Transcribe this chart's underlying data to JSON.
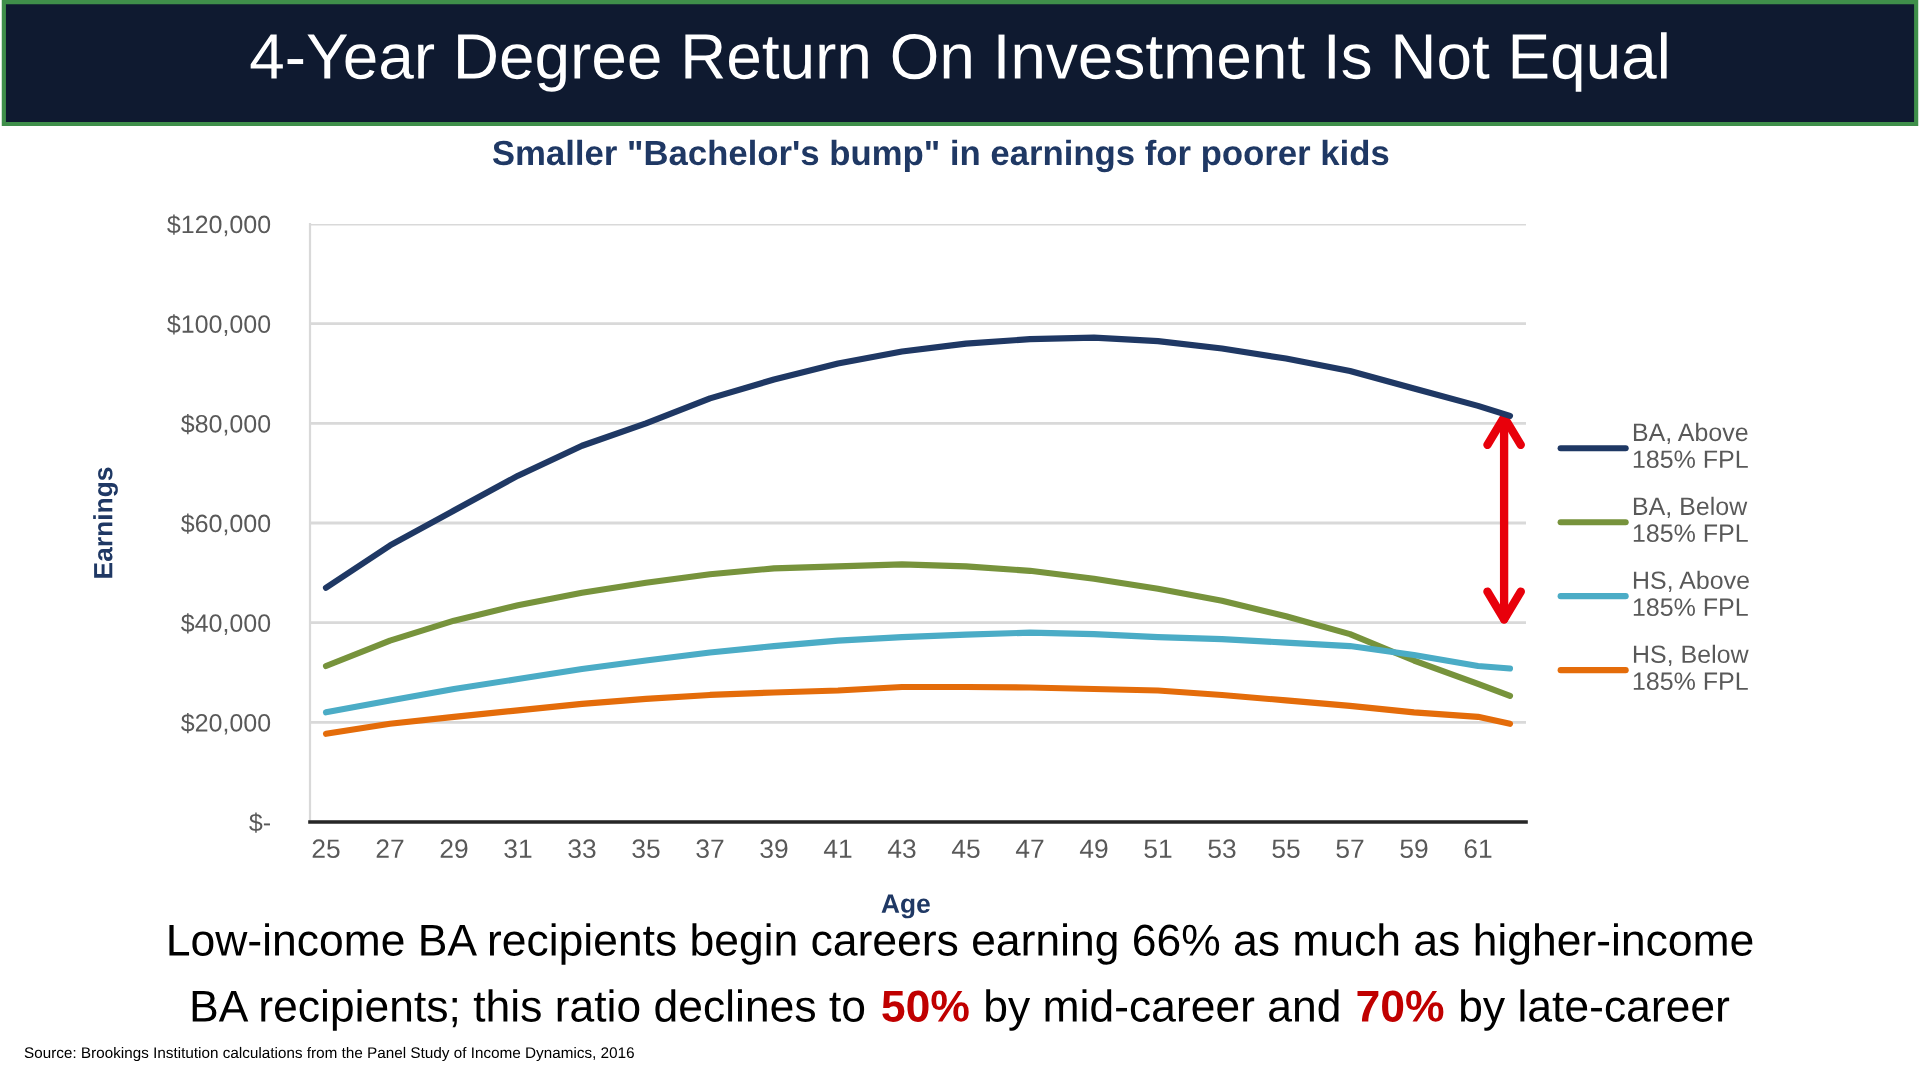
{
  "chart_data": {
    "type": "line",
    "title": "4-Year Degree Return On Investment Is Not Equal",
    "subtitle": "Smaller \"Bachelor's bump\" in earnings for poorer kids",
    "xlabel": "Age",
    "ylabel": "Earnings",
    "x": [
      25,
      27,
      29,
      31,
      33,
      35,
      37,
      39,
      41,
      43,
      45,
      47,
      49,
      51,
      53,
      55,
      57,
      59,
      61,
      62
    ],
    "series": [
      {
        "name": "BA, Above\n185% FPL",
        "color": "#1f3864",
        "values": [
          47000,
          55500,
          62500,
          69500,
          75500,
          80000,
          85000,
          88800,
          92000,
          94400,
          96000,
          96900,
          97200,
          96500,
          95000,
          93000,
          90500,
          87000,
          83500,
          81500
        ]
      },
      {
        "name": "BA, Below\n185% FPL",
        "color": "#77933c",
        "values": [
          31300,
          36400,
          40400,
          43500,
          46000,
          48000,
          49700,
          50900,
          51300,
          51700,
          51300,
          50400,
          48800,
          46800,
          44400,
          41300,
          37700,
          32400,
          27700,
          25300
        ]
      },
      {
        "name": "HS, Above\n185% FPL",
        "color": "#4bacc6",
        "values": [
          22000,
          24400,
          26700,
          28700,
          30700,
          32400,
          34000,
          35300,
          36400,
          37100,
          37600,
          38000,
          37700,
          37100,
          36700,
          36000,
          35300,
          33500,
          31300,
          30800
        ]
      },
      {
        "name": "HS, Below\n185% FPL",
        "color": "#e46c0a",
        "values": [
          17700,
          19700,
          21100,
          22400,
          23700,
          24700,
          25500,
          26000,
          26400,
          27100,
          27100,
          27000,
          26700,
          26400,
          25500,
          24400,
          23300,
          22000,
          21100,
          19700
        ]
      }
    ],
    "xlim": [
      24.5,
      62.5
    ],
    "xticks": [
      25,
      27,
      29,
      31,
      33,
      35,
      37,
      39,
      41,
      43,
      45,
      47,
      49,
      51,
      53,
      55,
      57,
      59,
      61
    ],
    "ylim": [
      0,
      120000
    ],
    "yticks": [
      {
        "value": 0,
        "label": "$-"
      },
      {
        "value": 20000,
        "label": "$20,000"
      },
      {
        "value": 40000,
        "label": "$40,000"
      },
      {
        "value": 60000,
        "label": "$60,000"
      },
      {
        "value": 80000,
        "label": "$80,000"
      },
      {
        "value": 100000,
        "label": "$100,000"
      },
      {
        "value": 120000,
        "label": "$120,000"
      }
    ],
    "grid": "y",
    "legend": "right",
    "line_style": "solid",
    "annotations": [
      "Low-income BA recipients begin careers earning 66% as much as higher-income",
      "BA recipients; this ratio declines to",
      "50%",
      "by mid-career and",
      "70%",
      "by late-career",
      "Source: Brookings Institution calculations from the Panel Study of Income Dynamics, 2016"
    ]
  }
}
